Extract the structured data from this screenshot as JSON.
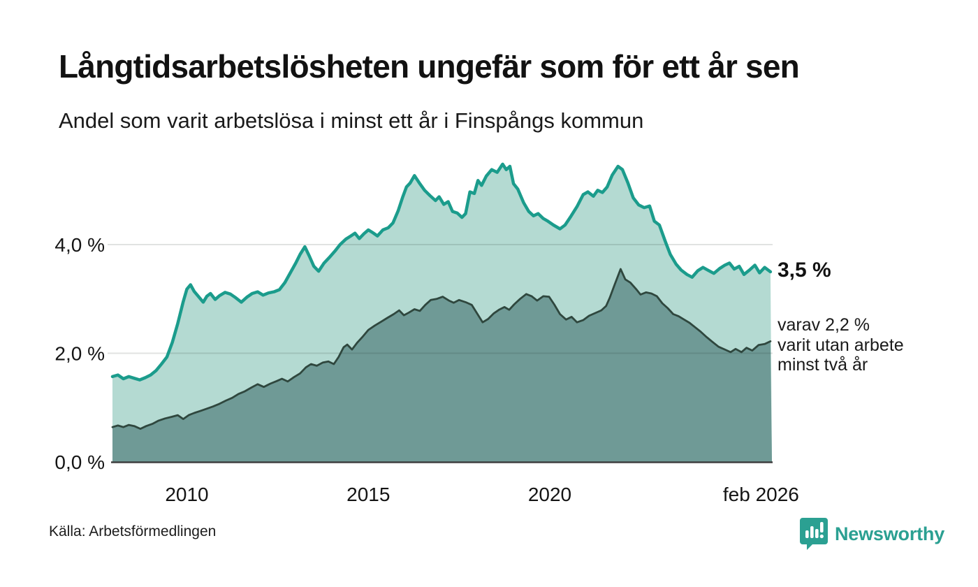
{
  "colors": {
    "brand_teal": "#2ba092",
    "line_1yr": "#1b9c8c",
    "fill_1yr": "#b4dad2",
    "line_2yr": "#2f473e",
    "fill_2yr": "#6f9a96",
    "axis": "#3f3f3f",
    "grid": "#d9d9d9"
  },
  "chart_data": {
    "type": "area",
    "title": "Långtidsarbetslösheten ungefär som för ett år sen",
    "subtitle": "Andel som varit arbetslösa i minst ett år i Finspångs kommun",
    "source": "Källa: Arbetsförmedlingen",
    "brand": "Newsworthy",
    "x_range": [
      2007.95,
      2026.12
    ],
    "ylim": [
      0,
      5.7
    ],
    "grid": "horizontal-only",
    "legend_position": "end-of-line-labels",
    "y_ticks": [
      {
        "label": "0,0 %",
        "value": 0
      },
      {
        "label": "2,0 %",
        "value": 2
      },
      {
        "label": "4,0 %",
        "value": 4
      }
    ],
    "x_ticks": [
      {
        "label": "2010",
        "year": 2010
      },
      {
        "label": "2015",
        "year": 2015
      },
      {
        "label": "2020",
        "year": 2020
      },
      {
        "label": "feb 2026",
        "year": 2025.82
      }
    ],
    "end_labels": {
      "primary": "3,5 %",
      "secondary": "varav 2,2 %\nvarit utan arbete\nminst två år"
    },
    "series": [
      {
        "name": "Andel arbetslösa minst ett år",
        "end_value": "3,5 %",
        "color": "#1b9c8c",
        "fill": "#b4dad2",
        "line_width": 4.5,
        "points": [
          [
            2007.95,
            1.57
          ],
          [
            2008.1,
            1.6
          ],
          [
            2008.25,
            1.53
          ],
          [
            2008.4,
            1.57
          ],
          [
            2008.55,
            1.54
          ],
          [
            2008.7,
            1.51
          ],
          [
            2008.85,
            1.55
          ],
          [
            2009.0,
            1.6
          ],
          [
            2009.15,
            1.68
          ],
          [
            2009.3,
            1.8
          ],
          [
            2009.45,
            1.93
          ],
          [
            2009.6,
            2.2
          ],
          [
            2009.75,
            2.55
          ],
          [
            2009.9,
            2.95
          ],
          [
            2010.0,
            3.18
          ],
          [
            2010.1,
            3.26
          ],
          [
            2010.2,
            3.14
          ],
          [
            2010.3,
            3.06
          ],
          [
            2010.45,
            2.94
          ],
          [
            2010.55,
            3.05
          ],
          [
            2010.65,
            3.1
          ],
          [
            2010.78,
            2.99
          ],
          [
            2010.9,
            3.06
          ],
          [
            2011.05,
            3.12
          ],
          [
            2011.2,
            3.09
          ],
          [
            2011.35,
            3.02
          ],
          [
            2011.5,
            2.94
          ],
          [
            2011.65,
            3.03
          ],
          [
            2011.8,
            3.1
          ],
          [
            2011.95,
            3.13
          ],
          [
            2012.1,
            3.07
          ],
          [
            2012.25,
            3.11
          ],
          [
            2012.4,
            3.13
          ],
          [
            2012.55,
            3.17
          ],
          [
            2012.7,
            3.3
          ],
          [
            2012.85,
            3.48
          ],
          [
            2013.0,
            3.66
          ],
          [
            2013.12,
            3.82
          ],
          [
            2013.25,
            3.96
          ],
          [
            2013.38,
            3.78
          ],
          [
            2013.5,
            3.6
          ],
          [
            2013.63,
            3.51
          ],
          [
            2013.78,
            3.66
          ],
          [
            2013.92,
            3.76
          ],
          [
            2014.08,
            3.88
          ],
          [
            2014.22,
            4.0
          ],
          [
            2014.38,
            4.1
          ],
          [
            2014.52,
            4.16
          ],
          [
            2014.63,
            4.21
          ],
          [
            2014.75,
            4.11
          ],
          [
            2014.88,
            4.2
          ],
          [
            2015.0,
            4.27
          ],
          [
            2015.12,
            4.22
          ],
          [
            2015.25,
            4.16
          ],
          [
            2015.4,
            4.27
          ],
          [
            2015.55,
            4.31
          ],
          [
            2015.68,
            4.4
          ],
          [
            2015.82,
            4.62
          ],
          [
            2015.95,
            4.88
          ],
          [
            2016.05,
            5.06
          ],
          [
            2016.15,
            5.13
          ],
          [
            2016.27,
            5.27
          ],
          [
            2016.4,
            5.14
          ],
          [
            2016.55,
            5.0
          ],
          [
            2016.7,
            4.9
          ],
          [
            2016.85,
            4.81
          ],
          [
            2016.95,
            4.88
          ],
          [
            2017.08,
            4.74
          ],
          [
            2017.2,
            4.79
          ],
          [
            2017.32,
            4.61
          ],
          [
            2017.45,
            4.58
          ],
          [
            2017.58,
            4.5
          ],
          [
            2017.68,
            4.57
          ],
          [
            2017.8,
            4.97
          ],
          [
            2017.92,
            4.94
          ],
          [
            2018.02,
            5.18
          ],
          [
            2018.12,
            5.09
          ],
          [
            2018.25,
            5.26
          ],
          [
            2018.4,
            5.38
          ],
          [
            2018.55,
            5.33
          ],
          [
            2018.7,
            5.48
          ],
          [
            2018.8,
            5.38
          ],
          [
            2018.9,
            5.44
          ],
          [
            2019.0,
            5.12
          ],
          [
            2019.12,
            5.02
          ],
          [
            2019.28,
            4.77
          ],
          [
            2019.42,
            4.61
          ],
          [
            2019.55,
            4.53
          ],
          [
            2019.68,
            4.57
          ],
          [
            2019.82,
            4.48
          ],
          [
            2019.95,
            4.43
          ],
          [
            2020.1,
            4.36
          ],
          [
            2020.28,
            4.29
          ],
          [
            2020.42,
            4.36
          ],
          [
            2020.58,
            4.52
          ],
          [
            2020.75,
            4.7
          ],
          [
            2020.92,
            4.92
          ],
          [
            2021.05,
            4.97
          ],
          [
            2021.2,
            4.89
          ],
          [
            2021.32,
            5.0
          ],
          [
            2021.45,
            4.96
          ],
          [
            2021.58,
            5.06
          ],
          [
            2021.72,
            5.28
          ],
          [
            2021.88,
            5.44
          ],
          [
            2022.0,
            5.38
          ],
          [
            2022.15,
            5.14
          ],
          [
            2022.3,
            4.86
          ],
          [
            2022.45,
            4.73
          ],
          [
            2022.6,
            4.68
          ],
          [
            2022.75,
            4.71
          ],
          [
            2022.88,
            4.43
          ],
          [
            2023.02,
            4.36
          ],
          [
            2023.18,
            4.06
          ],
          [
            2023.32,
            3.82
          ],
          [
            2023.48,
            3.64
          ],
          [
            2023.62,
            3.53
          ],
          [
            2023.78,
            3.45
          ],
          [
            2023.92,
            3.4
          ],
          [
            2024.08,
            3.52
          ],
          [
            2024.22,
            3.58
          ],
          [
            2024.38,
            3.52
          ],
          [
            2024.52,
            3.47
          ],
          [
            2024.68,
            3.56
          ],
          [
            2024.82,
            3.62
          ],
          [
            2024.95,
            3.66
          ],
          [
            2025.08,
            3.55
          ],
          [
            2025.22,
            3.6
          ],
          [
            2025.35,
            3.45
          ],
          [
            2025.5,
            3.53
          ],
          [
            2025.65,
            3.62
          ],
          [
            2025.78,
            3.48
          ],
          [
            2025.92,
            3.58
          ],
          [
            2026.08,
            3.5
          ]
        ]
      },
      {
        "name": "varav arbetslösa minst två år",
        "end_value": "2,2 %",
        "color": "#2f473e",
        "fill": "#6f9a96",
        "line_width": 2.8,
        "points": [
          [
            2007.95,
            0.64
          ],
          [
            2008.1,
            0.67
          ],
          [
            2008.25,
            0.64
          ],
          [
            2008.4,
            0.68
          ],
          [
            2008.55,
            0.66
          ],
          [
            2008.72,
            0.61
          ],
          [
            2008.88,
            0.66
          ],
          [
            2009.05,
            0.7
          ],
          [
            2009.22,
            0.76
          ],
          [
            2009.4,
            0.8
          ],
          [
            2009.58,
            0.83
          ],
          [
            2009.75,
            0.86
          ],
          [
            2009.9,
            0.79
          ],
          [
            2010.05,
            0.86
          ],
          [
            2010.2,
            0.9
          ],
          [
            2010.38,
            0.94
          ],
          [
            2010.55,
            0.98
          ],
          [
            2010.72,
            1.02
          ],
          [
            2010.9,
            1.07
          ],
          [
            2011.08,
            1.13
          ],
          [
            2011.25,
            1.18
          ],
          [
            2011.42,
            1.25
          ],
          [
            2011.6,
            1.3
          ],
          [
            2011.78,
            1.37
          ],
          [
            2011.95,
            1.43
          ],
          [
            2012.12,
            1.38
          ],
          [
            2012.3,
            1.44
          ],
          [
            2012.48,
            1.49
          ],
          [
            2012.62,
            1.53
          ],
          [
            2012.78,
            1.48
          ],
          [
            2012.95,
            1.56
          ],
          [
            2013.12,
            1.63
          ],
          [
            2013.28,
            1.74
          ],
          [
            2013.42,
            1.8
          ],
          [
            2013.58,
            1.77
          ],
          [
            2013.75,
            1.83
          ],
          [
            2013.9,
            1.85
          ],
          [
            2014.05,
            1.8
          ],
          [
            2014.18,
            1.93
          ],
          [
            2014.32,
            2.11
          ],
          [
            2014.42,
            2.16
          ],
          [
            2014.55,
            2.07
          ],
          [
            2014.7,
            2.2
          ],
          [
            2014.85,
            2.31
          ],
          [
            2015.0,
            2.43
          ],
          [
            2015.18,
            2.51
          ],
          [
            2015.35,
            2.58
          ],
          [
            2015.52,
            2.65
          ],
          [
            2015.7,
            2.72
          ],
          [
            2015.85,
            2.79
          ],
          [
            2015.98,
            2.7
          ],
          [
            2016.12,
            2.75
          ],
          [
            2016.27,
            2.81
          ],
          [
            2016.42,
            2.78
          ],
          [
            2016.57,
            2.89
          ],
          [
            2016.72,
            2.98
          ],
          [
            2016.88,
            3.0
          ],
          [
            2017.05,
            3.04
          ],
          [
            2017.22,
            2.97
          ],
          [
            2017.35,
            2.93
          ],
          [
            2017.5,
            2.98
          ],
          [
            2017.68,
            2.94
          ],
          [
            2017.85,
            2.89
          ],
          [
            2018.0,
            2.73
          ],
          [
            2018.15,
            2.57
          ],
          [
            2018.3,
            2.63
          ],
          [
            2018.45,
            2.73
          ],
          [
            2018.6,
            2.8
          ],
          [
            2018.75,
            2.85
          ],
          [
            2018.88,
            2.8
          ],
          [
            2019.02,
            2.9
          ],
          [
            2019.18,
            3.0
          ],
          [
            2019.35,
            3.09
          ],
          [
            2019.5,
            3.05
          ],
          [
            2019.65,
            2.97
          ],
          [
            2019.82,
            3.05
          ],
          [
            2019.98,
            3.04
          ],
          [
            2020.12,
            2.9
          ],
          [
            2020.28,
            2.72
          ],
          [
            2020.45,
            2.62
          ],
          [
            2020.6,
            2.67
          ],
          [
            2020.75,
            2.57
          ],
          [
            2020.92,
            2.61
          ],
          [
            2021.08,
            2.69
          ],
          [
            2021.25,
            2.74
          ],
          [
            2021.42,
            2.79
          ],
          [
            2021.55,
            2.87
          ],
          [
            2021.65,
            3.02
          ],
          [
            2021.78,
            3.25
          ],
          [
            2021.95,
            3.55
          ],
          [
            2022.08,
            3.36
          ],
          [
            2022.22,
            3.3
          ],
          [
            2022.38,
            3.18
          ],
          [
            2022.5,
            3.08
          ],
          [
            2022.65,
            3.12
          ],
          [
            2022.8,
            3.1
          ],
          [
            2022.95,
            3.05
          ],
          [
            2023.1,
            2.92
          ],
          [
            2023.25,
            2.83
          ],
          [
            2023.4,
            2.72
          ],
          [
            2023.55,
            2.68
          ],
          [
            2023.7,
            2.62
          ],
          [
            2023.85,
            2.56
          ],
          [
            2024.0,
            2.48
          ],
          [
            2024.15,
            2.4
          ],
          [
            2024.3,
            2.31
          ],
          [
            2024.48,
            2.21
          ],
          [
            2024.65,
            2.12
          ],
          [
            2024.82,
            2.07
          ],
          [
            2024.98,
            2.02
          ],
          [
            2025.12,
            2.08
          ],
          [
            2025.28,
            2.02
          ],
          [
            2025.42,
            2.1
          ],
          [
            2025.58,
            2.05
          ],
          [
            2025.75,
            2.15
          ],
          [
            2025.92,
            2.17
          ],
          [
            2026.08,
            2.22
          ]
        ]
      }
    ]
  }
}
